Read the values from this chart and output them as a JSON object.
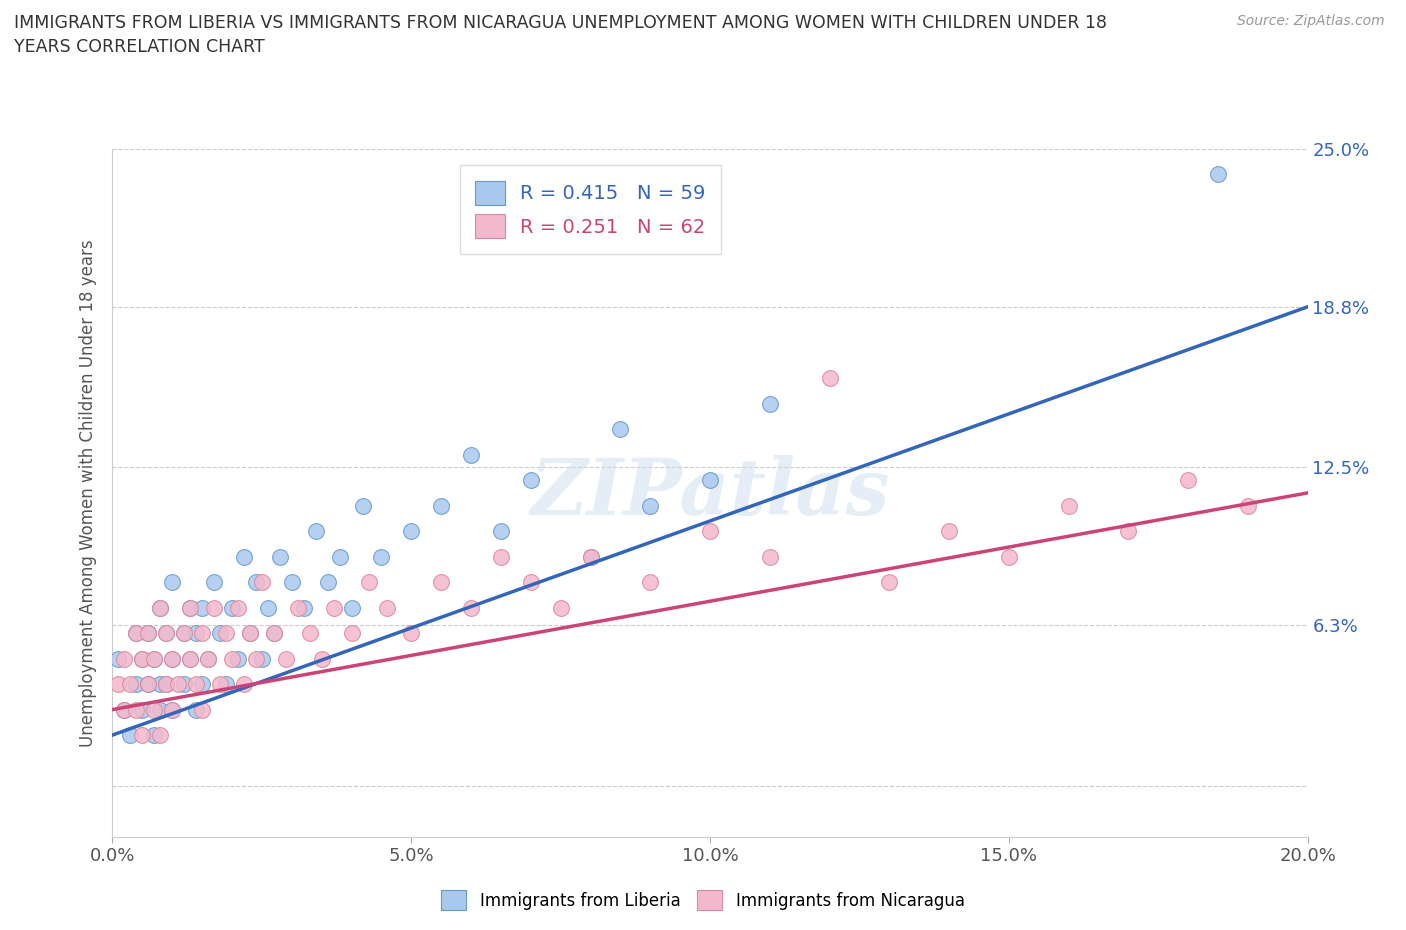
{
  "title": "IMMIGRANTS FROM LIBERIA VS IMMIGRANTS FROM NICARAGUA UNEMPLOYMENT AMONG WOMEN WITH CHILDREN UNDER 18\nYEARS CORRELATION CHART",
  "source": "Source: ZipAtlas.com",
  "ylabel": "Unemployment Among Women with Children Under 18 years",
  "xlim": [
    0.0,
    0.2
  ],
  "ylim": [
    -0.02,
    0.25
  ],
  "yticks": [
    0.0,
    0.063,
    0.125,
    0.188,
    0.25
  ],
  "ytick_labels": [
    "",
    "6.3%",
    "12.5%",
    "18.8%",
    "25.0%"
  ],
  "xticks": [
    0.0,
    0.05,
    0.1,
    0.15,
    0.2
  ],
  "xtick_labels": [
    "0.0%",
    "5.0%",
    "10.0%",
    "15.0%",
    "20.0%"
  ],
  "liberia_R": 0.415,
  "liberia_N": 59,
  "nicaragua_R": 0.251,
  "nicaragua_N": 62,
  "liberia_color": "#a8c8ee",
  "nicaragua_color": "#f4b8cc",
  "liberia_edge_color": "#6699cc",
  "nicaragua_edge_color": "#dd8899",
  "liberia_line_color": "#3366bb",
  "nicaragua_line_color": "#cc4477",
  "watermark": "ZIPatlas",
  "legend_label_liberia": "Immigrants from Liberia",
  "legend_label_nicaragua": "Immigrants from Nicaragua",
  "liberia_x": [
    0.001,
    0.002,
    0.003,
    0.004,
    0.004,
    0.005,
    0.005,
    0.006,
    0.006,
    0.007,
    0.007,
    0.008,
    0.008,
    0.008,
    0.009,
    0.009,
    0.01,
    0.01,
    0.01,
    0.012,
    0.012,
    0.013,
    0.013,
    0.014,
    0.014,
    0.015,
    0.015,
    0.016,
    0.017,
    0.018,
    0.019,
    0.02,
    0.021,
    0.022,
    0.023,
    0.024,
    0.025,
    0.026,
    0.027,
    0.028,
    0.03,
    0.032,
    0.034,
    0.036,
    0.038,
    0.04,
    0.042,
    0.045,
    0.05,
    0.055,
    0.06,
    0.065,
    0.07,
    0.08,
    0.085,
    0.09,
    0.1,
    0.11,
    0.185
  ],
  "liberia_y": [
    0.05,
    0.03,
    0.02,
    0.04,
    0.06,
    0.03,
    0.05,
    0.04,
    0.06,
    0.02,
    0.05,
    0.03,
    0.04,
    0.07,
    0.04,
    0.06,
    0.03,
    0.05,
    0.08,
    0.04,
    0.06,
    0.05,
    0.07,
    0.03,
    0.06,
    0.04,
    0.07,
    0.05,
    0.08,
    0.06,
    0.04,
    0.07,
    0.05,
    0.09,
    0.06,
    0.08,
    0.05,
    0.07,
    0.06,
    0.09,
    0.08,
    0.07,
    0.1,
    0.08,
    0.09,
    0.07,
    0.11,
    0.09,
    0.1,
    0.11,
    0.13,
    0.1,
    0.12,
    0.09,
    0.14,
    0.11,
    0.12,
    0.15,
    0.24
  ],
  "nicaragua_x": [
    0.001,
    0.002,
    0.002,
    0.003,
    0.004,
    0.004,
    0.005,
    0.005,
    0.006,
    0.006,
    0.007,
    0.007,
    0.008,
    0.008,
    0.009,
    0.009,
    0.01,
    0.01,
    0.011,
    0.012,
    0.013,
    0.013,
    0.014,
    0.015,
    0.015,
    0.016,
    0.017,
    0.018,
    0.019,
    0.02,
    0.021,
    0.022,
    0.023,
    0.024,
    0.025,
    0.027,
    0.029,
    0.031,
    0.033,
    0.035,
    0.037,
    0.04,
    0.043,
    0.046,
    0.05,
    0.055,
    0.06,
    0.065,
    0.07,
    0.075,
    0.08,
    0.09,
    0.1,
    0.11,
    0.12,
    0.13,
    0.14,
    0.15,
    0.16,
    0.17,
    0.18,
    0.19
  ],
  "nicaragua_y": [
    0.04,
    0.03,
    0.05,
    0.04,
    0.03,
    0.06,
    0.02,
    0.05,
    0.04,
    0.06,
    0.03,
    0.05,
    0.02,
    0.07,
    0.04,
    0.06,
    0.03,
    0.05,
    0.04,
    0.06,
    0.05,
    0.07,
    0.04,
    0.03,
    0.06,
    0.05,
    0.07,
    0.04,
    0.06,
    0.05,
    0.07,
    0.04,
    0.06,
    0.05,
    0.08,
    0.06,
    0.05,
    0.07,
    0.06,
    0.05,
    0.07,
    0.06,
    0.08,
    0.07,
    0.06,
    0.08,
    0.07,
    0.09,
    0.08,
    0.07,
    0.09,
    0.08,
    0.1,
    0.09,
    0.16,
    0.08,
    0.1,
    0.09,
    0.11,
    0.1,
    0.12,
    0.11
  ],
  "liberia_trend": [
    0.02,
    0.188
  ],
  "nicaragua_trend": [
    0.03,
    0.115
  ]
}
